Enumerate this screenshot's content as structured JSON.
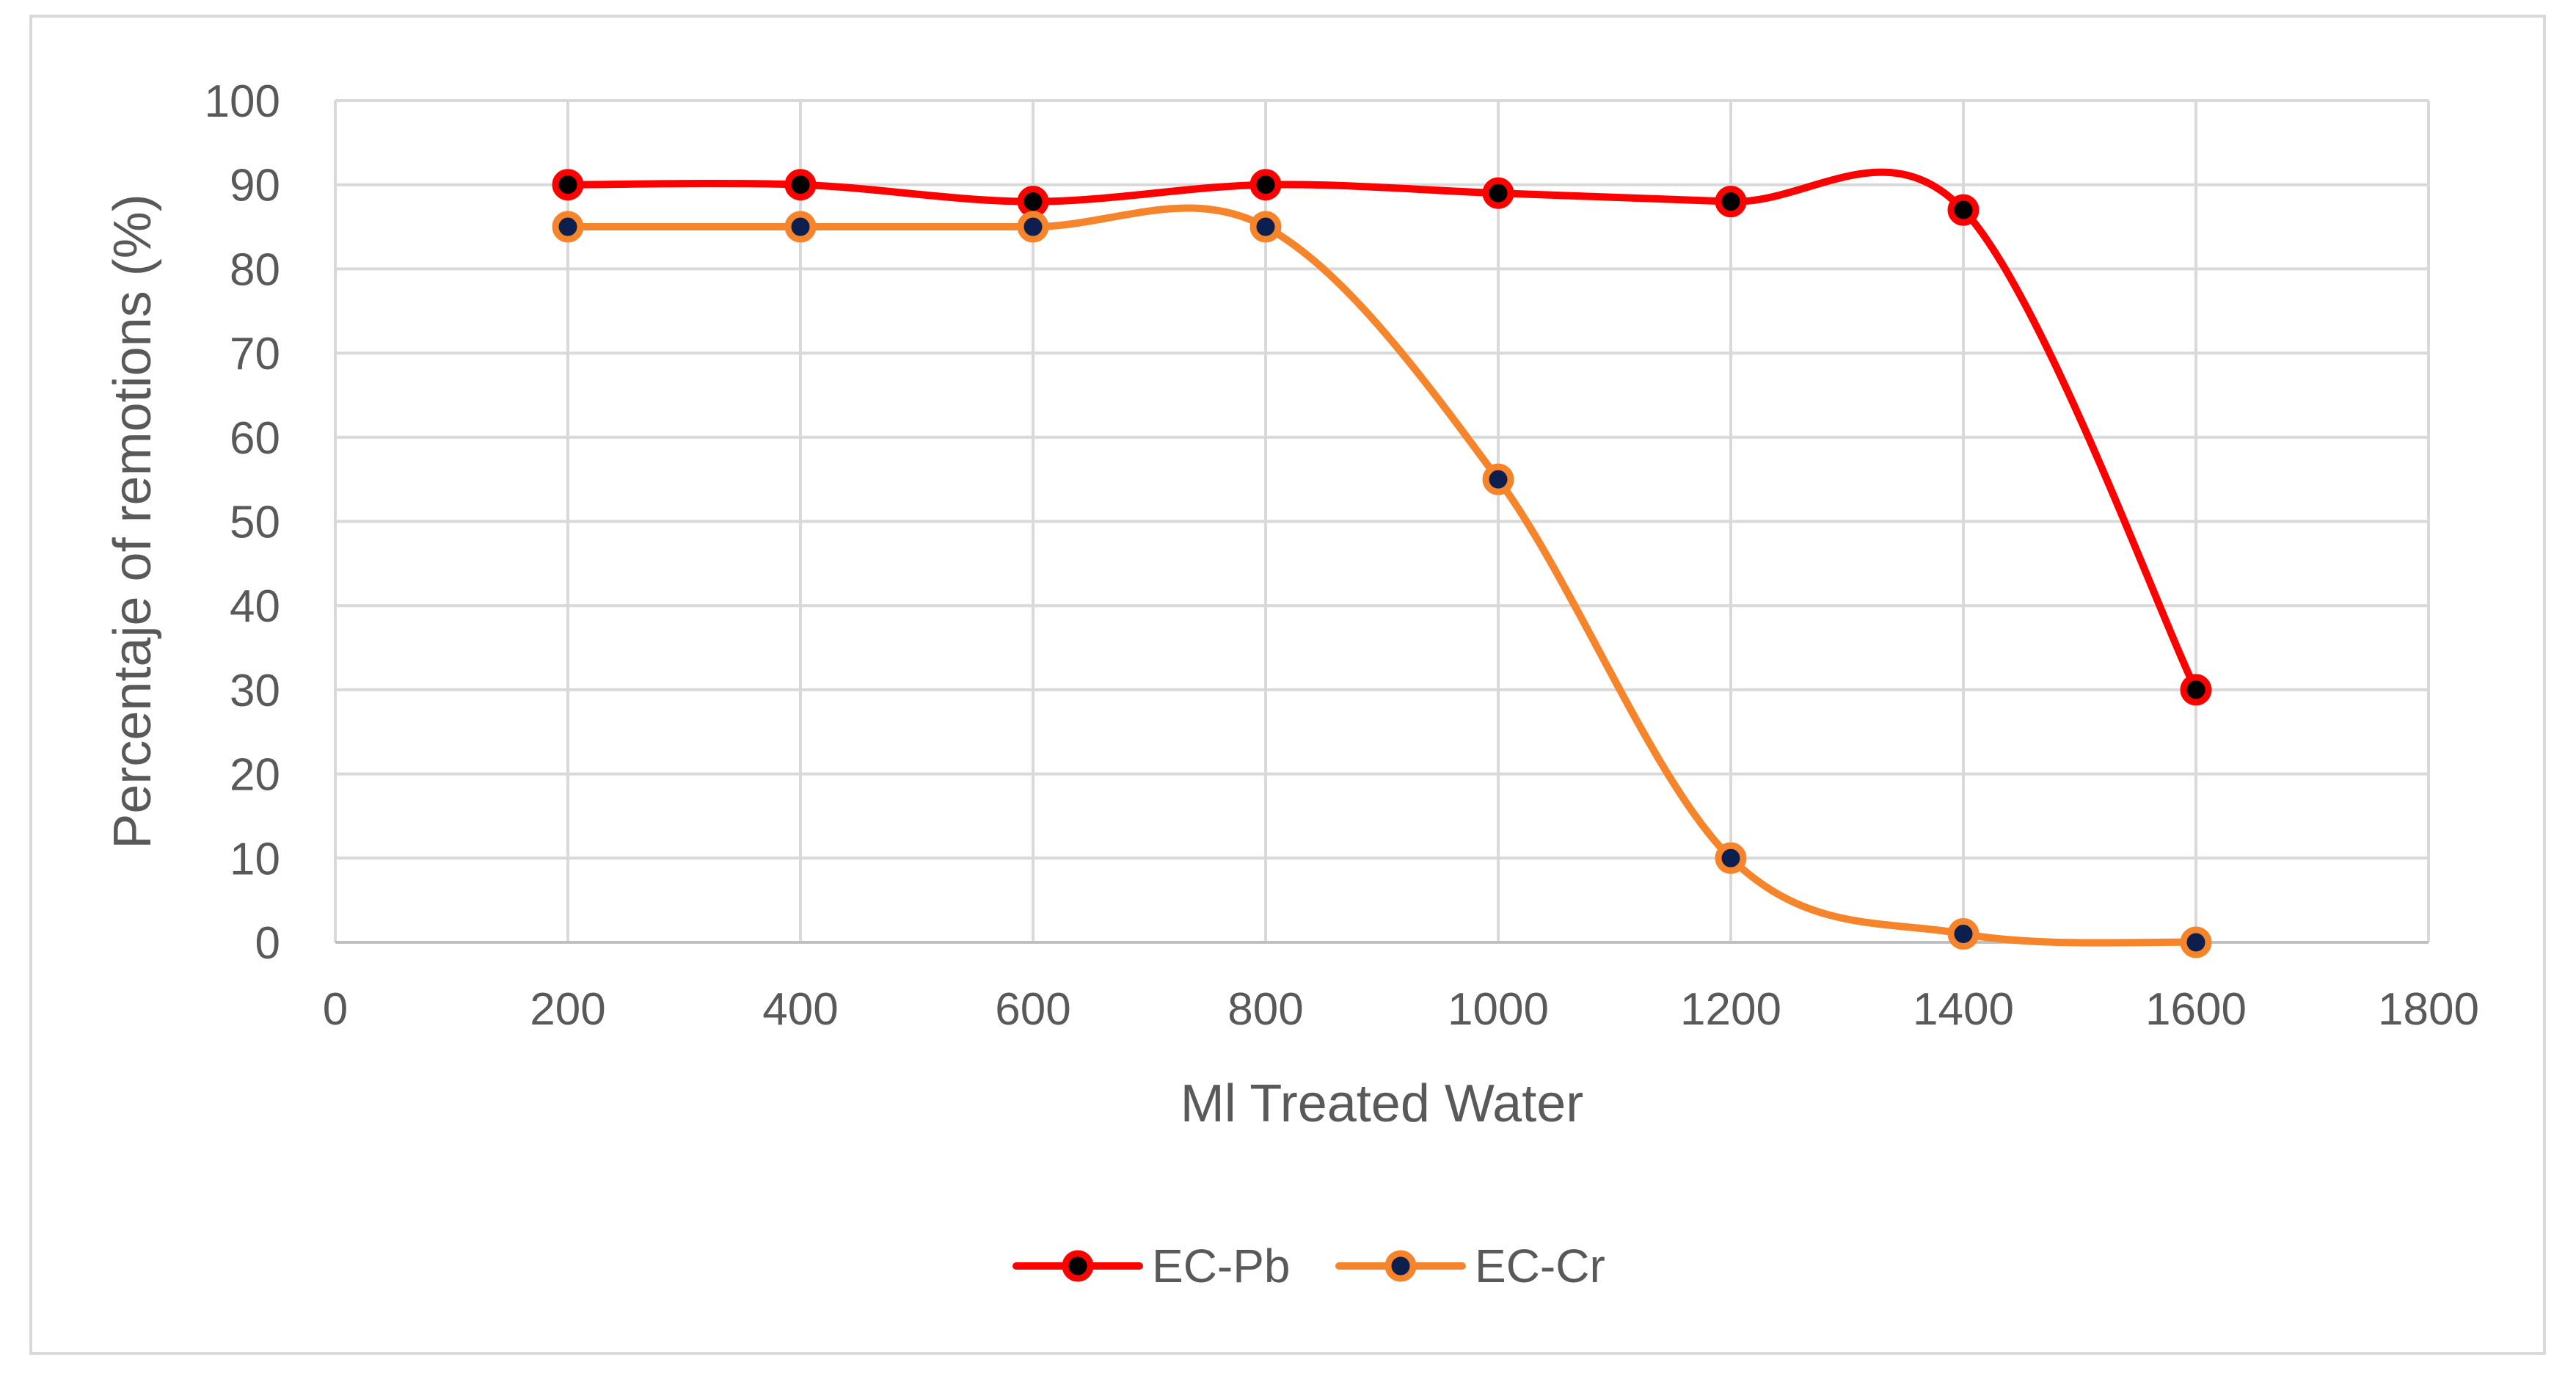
{
  "chart_data": {
    "type": "line",
    "title": "",
    "xlabel": "Ml Treated Water",
    "ylabel": "Percentaje of remotions (%)",
    "xlim": [
      0,
      1800
    ],
    "ylim": [
      0,
      100
    ],
    "x_ticks": [
      0,
      200,
      400,
      600,
      800,
      1000,
      1200,
      1400,
      1600,
      1800
    ],
    "y_ticks": [
      0,
      10,
      20,
      30,
      40,
      50,
      60,
      70,
      80,
      90,
      100
    ],
    "grid": true,
    "smooth": true,
    "legend_position": "bottom",
    "series": [
      {
        "name": "EC-Pb",
        "line_color": "#ff0000",
        "marker_fill": "#000000",
        "marker_edge": "#ff0000",
        "x": [
          200,
          400,
          600,
          800,
          1000,
          1200,
          1400,
          1600
        ],
        "values": [
          90,
          90,
          88,
          90,
          89,
          88,
          87,
          30
        ]
      },
      {
        "name": "EC-Cr",
        "line_color": "#f5842b",
        "marker_fill": "#0d1f4f",
        "marker_edge": "#f5842b",
        "x": [
          200,
          400,
          600,
          800,
          1000,
          1200,
          1400,
          1600
        ],
        "values": [
          85,
          85,
          85,
          85,
          55,
          10,
          1,
          0
        ]
      }
    ]
  }
}
